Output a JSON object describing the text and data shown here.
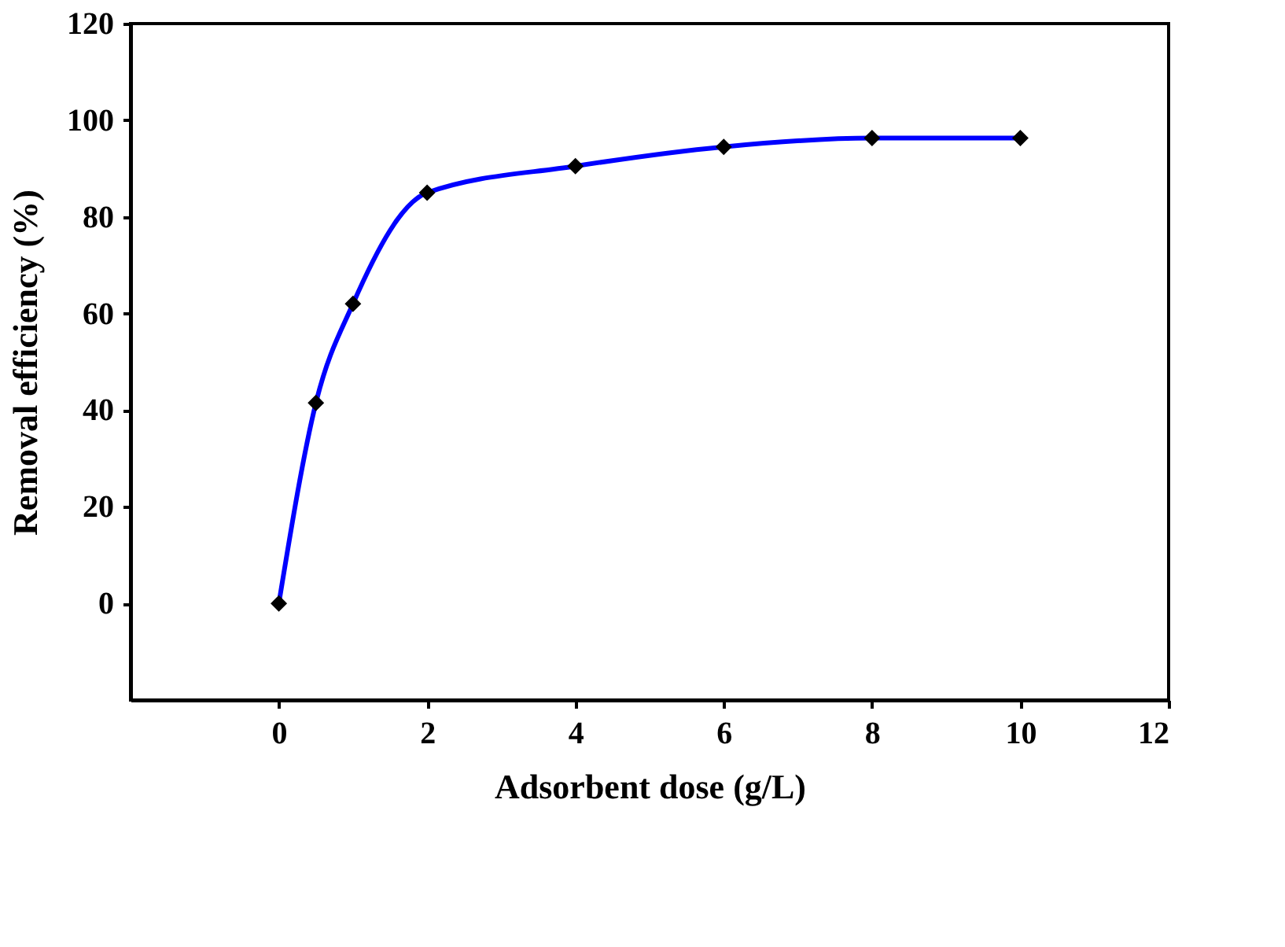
{
  "chart_data": {
    "type": "line",
    "xlabel": "Adsorbent dose (g/L)",
    "ylabel": "Removal efficiency (%)",
    "x": [
      0,
      0.5,
      1,
      2,
      4,
      6,
      8,
      10
    ],
    "series": [
      {
        "type": "line",
        "color": "#0000ff",
        "marker": "none",
        "values": [
          0,
          41.5,
          62,
          85,
          90.5,
          94.5,
          96.3,
          96.3
        ]
      },
      {
        "type": "scatter",
        "color": "#000000",
        "marker": "diamond",
        "values": [
          0,
          41.5,
          62,
          85,
          90.5,
          94.5,
          96.3,
          96.3
        ]
      }
    ],
    "xlim": [
      -2,
      12
    ],
    "xticks": [
      0,
      2,
      4,
      6,
      8,
      10,
      12
    ],
    "ylim": [
      -20,
      120
    ],
    "yticks": [
      0,
      20,
      40,
      60,
      80,
      100,
      120
    ],
    "grid": false
  }
}
